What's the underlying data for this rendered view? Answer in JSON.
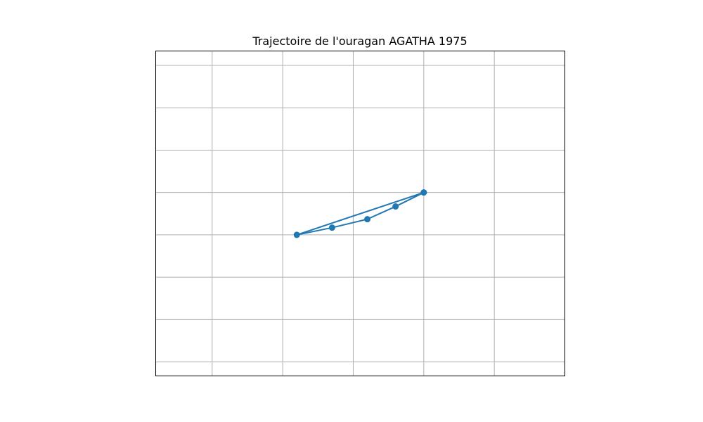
{
  "chart_data": {
    "type": "line",
    "title": "Trajectoire de l'ouragan AGATHA 1975",
    "xlabel": "",
    "ylabel": "",
    "grid": true,
    "xlim": [
      -0.8,
      5.0
    ],
    "ylim": [
      -1.0,
      6.67
    ],
    "x_grid": [
      0,
      1,
      2,
      3,
      4,
      5
    ],
    "y_grid": [
      -0.67,
      0.33,
      1.33,
      2.33,
      3.33,
      4.33,
      5.33,
      6.33
    ],
    "colors": {
      "series": "#1f77b4",
      "grid": "#b0b0b0",
      "frame": "#000000"
    },
    "series": [
      {
        "x": [
          3.0,
          2.6,
          2.2,
          1.7,
          1.2,
          3.0
        ],
        "y": [
          3.33,
          3.0,
          2.7,
          2.5,
          2.33,
          3.33
        ]
      }
    ]
  }
}
